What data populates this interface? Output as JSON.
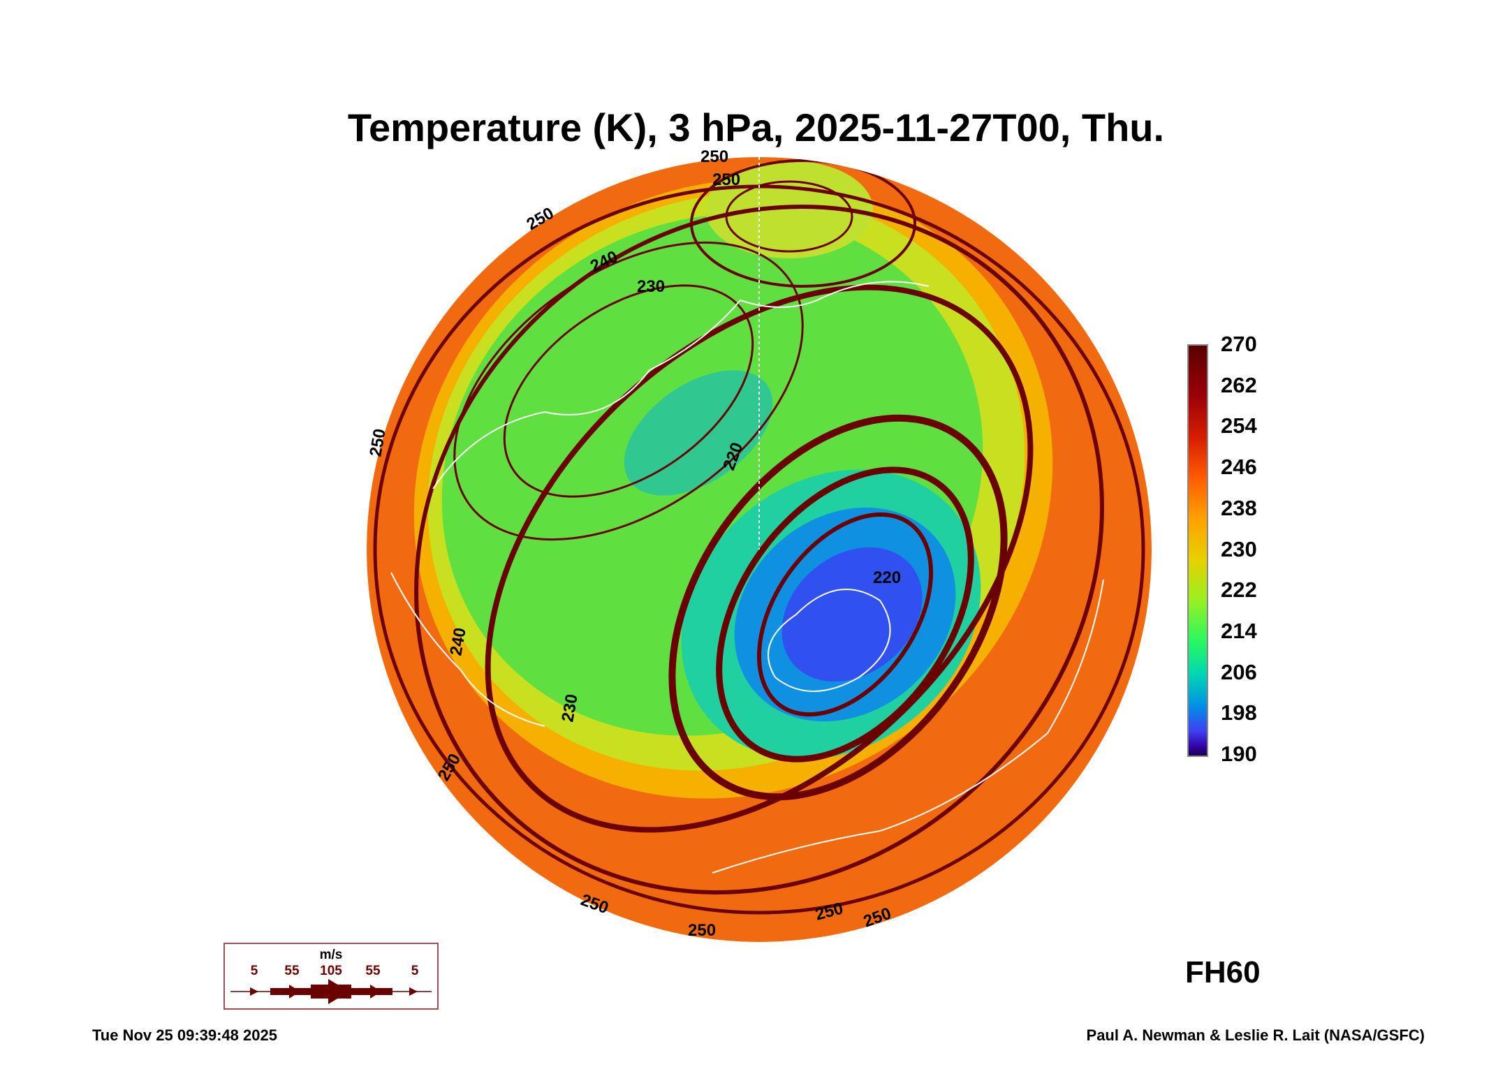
{
  "title": "Temperature (K), 3 hPa, 2025-11-27T00, Thu.",
  "colorbar": {
    "ticks": [
      "270",
      "262",
      "254",
      "246",
      "238",
      "230",
      "222",
      "214",
      "206",
      "198",
      "190"
    ],
    "min": 190,
    "max": 270
  },
  "contour_labels": [
    "250",
    "250",
    "250",
    "250",
    "240",
    "230",
    "220",
    "220",
    "240",
    "230",
    "250",
    "250",
    "250",
    "250",
    "250"
  ],
  "wind_legend": {
    "unit": "m/s",
    "values": [
      "5",
      "55",
      "105",
      "55",
      "5"
    ]
  },
  "forecast_hour": "FH60",
  "timestamp": "Tue Nov 25 09:39:48 2025",
  "credit": "Paul A. Newman & Leslie R. Lait (NASA/GSFC)",
  "colors": {
    "streamline": "#6a0000",
    "coastline": "#ffffff"
  }
}
